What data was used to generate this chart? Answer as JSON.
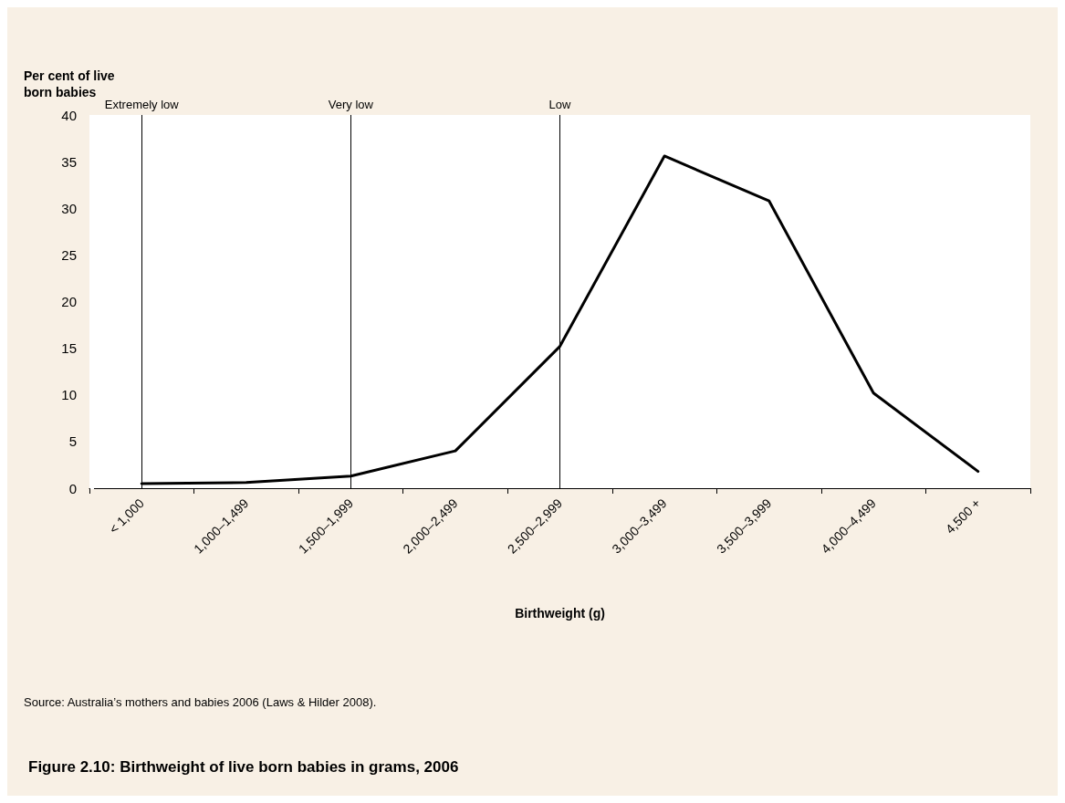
{
  "chart_data": {
    "type": "line",
    "title": "Figure 2.10: Birthweight of live born babies in grams, 2006",
    "xlabel": "Birthweight (g)",
    "ylabel": "Per cent of live born babies",
    "annotations": [
      "Source: Australia’s mothers and babies 2006 (Laws & Hilder 2008)."
    ],
    "categories": [
      "< 1,000",
      "1,000–1,499",
      "1,500–1,999",
      "2,000–2,499",
      "2,500–2,999",
      "3,000–3,499",
      "3,500–3,999",
      "4,000–4,499",
      "4,500 +"
    ],
    "series": [
      {
        "color": "#000000",
        "values": [
          0.5,
          0.6,
          1.3,
          4.0,
          15.2,
          35.6,
          30.8,
          10.2,
          1.8
        ]
      }
    ],
    "ylim": [
      0,
      40
    ],
    "yticks": [
      0,
      5,
      10,
      15,
      20,
      25,
      30,
      35,
      40
    ],
    "grid": false,
    "marker": "none",
    "line_style": "solid",
    "ref_lines": [
      {
        "axis": "x",
        "value": "< 1,000",
        "label": "Extremely low",
        "color": "#000000"
      },
      {
        "axis": "x",
        "value": "1,500–1,999",
        "label": "Very low",
        "color": "#000000"
      },
      {
        "axis": "x",
        "value": "2,500–2,999",
        "label": "Low",
        "color": "#000000"
      }
    ]
  }
}
